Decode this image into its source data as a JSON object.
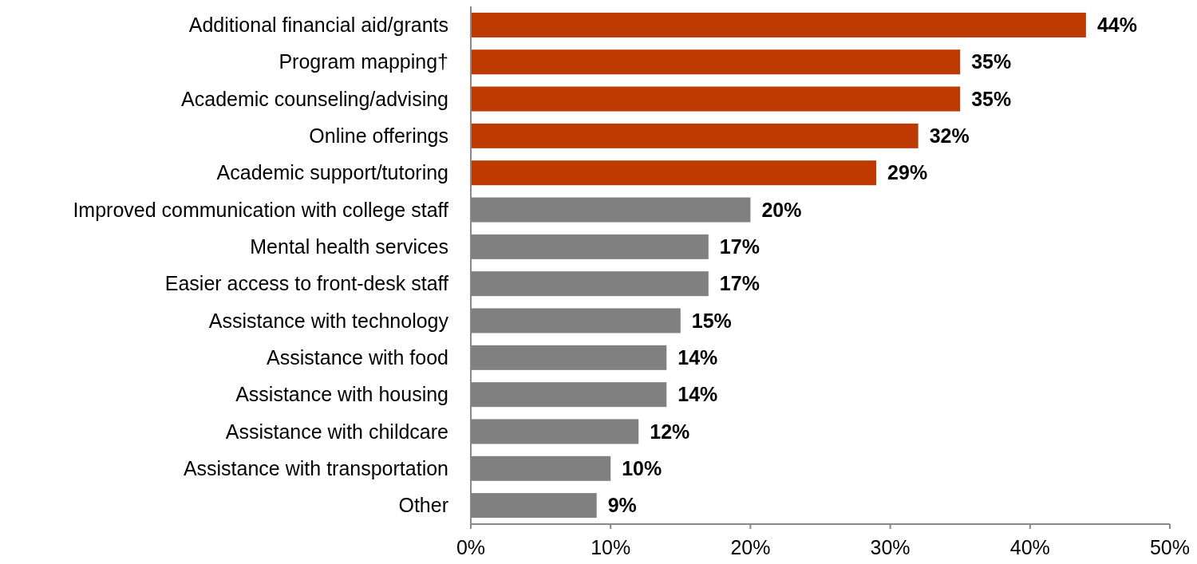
{
  "chart_data": {
    "type": "bar",
    "orientation": "horizontal",
    "categories": [
      "Additional financial aid/grants",
      "Program mapping†",
      "Academic counseling/advising",
      "Online offerings",
      "Academic support/tutoring",
      "Improved communication with college staff",
      "Mental health services",
      "Easier access to front-desk staff",
      "Assistance with technology",
      "Assistance with food",
      "Assistance with housing",
      "Assistance with childcare",
      "Assistance with transportation",
      "Other"
    ],
    "values": [
      44,
      35,
      35,
      32,
      29,
      20,
      17,
      17,
      15,
      14,
      14,
      12,
      10,
      9
    ],
    "colors": [
      "#bf3a00",
      "#bf3a00",
      "#bf3a00",
      "#bf3a00",
      "#bf3a00",
      "#808080",
      "#808080",
      "#808080",
      "#808080",
      "#808080",
      "#808080",
      "#808080",
      "#808080",
      "#808080"
    ],
    "xlim": [
      0,
      50
    ],
    "xticks": [
      {
        "value": 0,
        "label": "0%"
      },
      {
        "value": 10,
        "label": "10%"
      },
      {
        "value": 20,
        "label": "20%"
      },
      {
        "value": 30,
        "label": "30%"
      },
      {
        "value": 40,
        "label": "40%"
      },
      {
        "value": 50,
        "label": "50%"
      }
    ],
    "value_labels": [
      "44%",
      "35%",
      "35%",
      "32%",
      "29%",
      "20%",
      "17%",
      "17%",
      "15%",
      "14%",
      "14%",
      "12%",
      "10%",
      "9%"
    ],
    "grid": false
  }
}
